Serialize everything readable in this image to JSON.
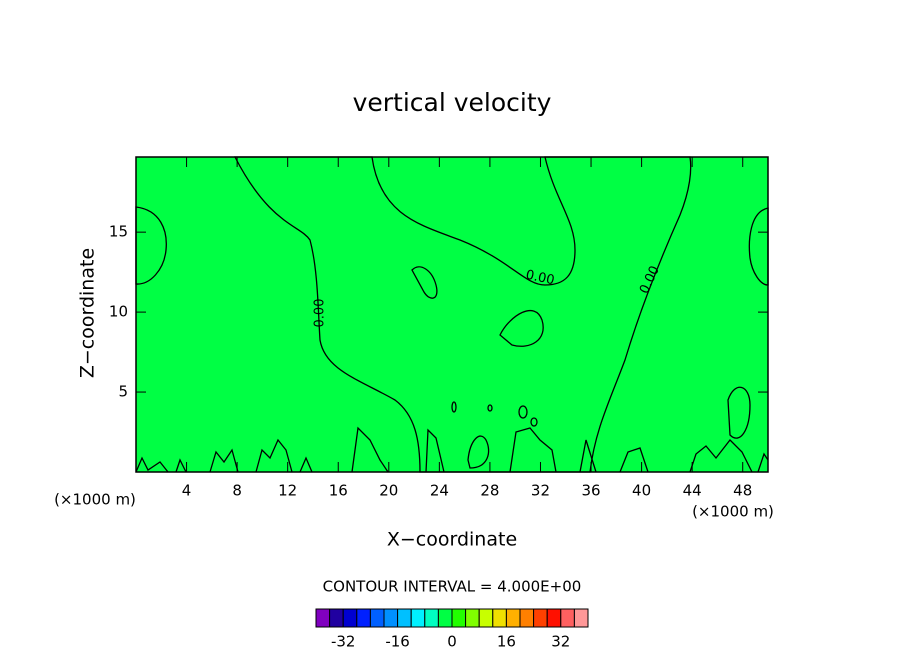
{
  "chart_data": {
    "type": "contour",
    "title": "vertical velocity",
    "x_label": "X−coordinate",
    "y_label": "Z−coordinate",
    "x_unit": "(×1000 m)",
    "xlim": [
      0,
      50
    ],
    "xticks": [
      4,
      8,
      12,
      16,
      20,
      24,
      28,
      32,
      36,
      40,
      44,
      48
    ],
    "ylim": [
      0,
      19.7
    ],
    "yticks": [
      5,
      10,
      15
    ],
    "contour_labels": [
      {
        "value": 0,
        "label": "0.00"
      },
      {
        "value": 0,
        "label": "0.00"
      },
      {
        "value": 0,
        "label": "0.00"
      }
    ],
    "contour_interval": "CONTOUR INTERVAL = 4.000E+00",
    "colorbar": {
      "levels": [
        -40,
        -36,
        -32,
        -28,
        -24,
        -20,
        -16,
        -12,
        -8,
        -4,
        0,
        4,
        8,
        12,
        16,
        20,
        24,
        28,
        32,
        36,
        40
      ],
      "colors": [
        "#8000c0",
        "#2000a0",
        "#0000d0",
        "#0020ff",
        "#0060ff",
        "#0090ff",
        "#00c0ff",
        "#00f0ff",
        "#00ffc0",
        "#00ff44",
        "#22ff00",
        "#80ff00",
        "#c8ff00",
        "#f0e000",
        "#ffb000",
        "#ff8000",
        "#ff4000",
        "#ff1000",
        "#ff6060",
        "#ff9898"
      ],
      "ticks": [
        -32,
        -16,
        0,
        16,
        32
      ]
    }
  }
}
